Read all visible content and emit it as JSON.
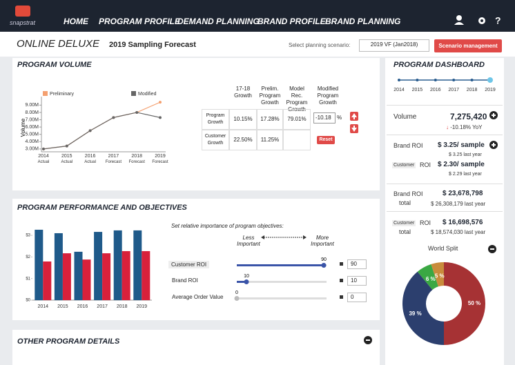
{
  "nav": {
    "logo": "snapstrat",
    "items": [
      "HOME",
      "PROGRAM PROFILE",
      "DEMAND PLANNING",
      "BRAND PROFILE",
      "BRAND PLANNING"
    ]
  },
  "header": {
    "title": "ONLINE DELUXE",
    "subtitle": "2019 Sampling Forecast",
    "scenario_label": "Select planning scenario:",
    "scenario": "2019 VF (Jan2018)",
    "button": "Scenario management"
  },
  "program_volume": {
    "title": "PROGRAM VOLUME",
    "chart_data": {
      "type": "line",
      "y_label": "Volume",
      "categories": [
        "2014 Actual",
        "2015 Actual",
        "2016 Actual",
        "2017 Forecast",
        "2018 Forecast",
        "2019 Forecast"
      ],
      "series": [
        {
          "name": "Preliminary",
          "color": "#f4a070",
          "values": [
            3000000,
            3400000,
            5500000,
            7300000,
            8000000,
            9400000
          ]
        },
        {
          "name": "Modified",
          "color": "#666666",
          "values": [
            3000000,
            3400000,
            5500000,
            7300000,
            8000000,
            7300000
          ]
        }
      ],
      "ylim": [
        2800000,
        9600000
      ],
      "yticks": [
        {
          "value": 3000000,
          "label": "3.00M"
        },
        {
          "value": 4000000,
          "label": "4.00M"
        },
        {
          "value": 5000000,
          "label": "5.00M"
        },
        {
          "value": 6000000,
          "label": "6.00M"
        },
        {
          "value": 7000000,
          "label": "7.00M"
        },
        {
          "value": 8000000,
          "label": "8.00M"
        },
        {
          "value": 9000000,
          "label": "9.00M"
        }
      ]
    },
    "table": {
      "headers": [
        "17-18 Growth",
        "Prelim. Program Growth",
        "Model Rec. Program Growth",
        "Modified Program Growth"
      ],
      "rows": [
        [
          "Program Growth",
          "10.15%",
          "17.28%",
          "79.01%",
          "-10.18"
        ],
        [
          "Customer Growth",
          "22.50%",
          "11.25%"
        ]
      ],
      "input_unit": "%",
      "reset": "Reset"
    }
  },
  "performance": {
    "title": "PROGRAM PERFORMANCE AND OBJECTIVES",
    "chart_data": {
      "type": "bar",
      "categories": [
        "2014",
        "2015",
        "2016",
        "2017",
        "2018",
        "2019"
      ],
      "series": [
        {
          "color": "#1f5a8a",
          "values": [
            3.26,
            3.1,
            2.24,
            3.16,
            3.23,
            3.23
          ]
        },
        {
          "color": "#d8213b",
          "values": [
            1.79,
            2.17,
            1.88,
            2.17,
            2.27,
            2.27
          ]
        }
      ],
      "ylim": [
        0,
        3.4
      ],
      "yticks": [
        {
          "value": 0,
          "label": "$0"
        },
        {
          "value": 1,
          "label": "$1"
        },
        {
          "value": 2,
          "label": "$2"
        },
        {
          "value": 3,
          "label": "$3"
        }
      ]
    },
    "objectives": {
      "instruction": "Set relative importance of program objectives:",
      "less": "Less Important",
      "more": "More Important",
      "sliders": [
        {
          "label": "Customer ROI",
          "value": 90
        },
        {
          "label": "Brand ROI",
          "value": 10
        },
        {
          "label": "Average Order Value",
          "value": 0
        }
      ]
    }
  },
  "other": {
    "title": "OTHER PROGRAM DETAILS"
  },
  "dashboard": {
    "title": "PROGRAM DASHBOARD",
    "years": [
      "2014",
      "2015",
      "2016",
      "2017",
      "2018",
      "2019"
    ],
    "volume": {
      "label": "Volume",
      "value": "7,275,420",
      "change": "-10.18% YoY"
    },
    "brand_roi": {
      "label": "Brand ROI",
      "value": "$ 3.25/ sample",
      "last": "$ 3.25 last year"
    },
    "customer_roi": {
      "tag": "Customer",
      "label": "ROI",
      "value": "$ 2.30/ sample",
      "last": "$ 2.29 last year"
    },
    "brand_total": {
      "label": "Brand ROI",
      "label2": "total",
      "value": "$ 23,678,798",
      "last": "$ 26,308,179 last year"
    },
    "customer_total": {
      "tag": "Customer",
      "label": "ROI",
      "label2": "total",
      "value": "$ 16,698,576",
      "last": "$ 18,574,030 last year"
    },
    "world_split": {
      "title": "World Split",
      "chart_data": {
        "type": "pie",
        "values": [
          50,
          39,
          6,
          5
        ],
        "value_labels": [
          "50 %",
          "39 %",
          "6 %",
          "5 %"
        ],
        "colors": [
          "#a63234",
          "#2c3f6e",
          "#3aa843",
          "#c98c3c"
        ]
      }
    }
  }
}
